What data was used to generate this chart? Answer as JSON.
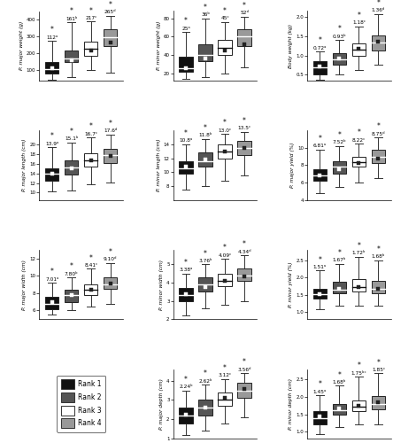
{
  "figsize": [
    4.44,
    5.0
  ],
  "colors": {
    "rank1": "#111111",
    "rank2": "#555555",
    "rank3": "#ffffff",
    "rank4": "#999999"
  },
  "subplots": [
    {
      "ylabel": "P. major weight (g)",
      "ylim": [
        40,
        450
      ],
      "yticks": [
        100,
        200,
        300,
        400
      ],
      "means": [
        112,
        161,
        217,
        265
      ],
      "mean_labels": [
        "112ᵃ",
        "161ᵇ",
        "217ᶜ",
        "265ᵈ"
      ],
      "sig_stars": [
        true,
        true,
        true,
        true
      ],
      "boxes": [
        {
          "q1": 80,
          "median": 105,
          "q3": 148,
          "whislo": 42,
          "whishi": 275
        },
        {
          "q1": 150,
          "median": 172,
          "q3": 215,
          "whislo": 62,
          "whishi": 385
        },
        {
          "q1": 188,
          "median": 228,
          "q3": 272,
          "whislo": 102,
          "whishi": 388
        },
        {
          "q1": 245,
          "median": 298,
          "q3": 342,
          "whislo": 88,
          "whishi": 422
        }
      ],
      "row": 0,
      "col": 0
    },
    {
      "ylabel": "P. minor weight (g)",
      "ylim": [
        12,
        88
      ],
      "yticks": [
        20,
        40,
        60,
        80
      ],
      "means": [
        25,
        36,
        45,
        52
      ],
      "mean_labels": [
        "25ᵃ",
        "36ᵇ",
        "45ᶜ",
        "52ᵈ"
      ],
      "sig_stars": [
        true,
        true,
        true,
        true
      ],
      "boxes": [
        {
          "q1": 22,
          "median": 25,
          "q3": 38,
          "whislo": 14,
          "whishi": 65
        },
        {
          "q1": 33,
          "median": 40,
          "q3": 52,
          "whislo": 16,
          "whishi": 80
        },
        {
          "q1": 40,
          "median": 48,
          "q3": 56,
          "whislo": 20,
          "whishi": 76
        },
        {
          "q1": 50,
          "median": 60,
          "q3": 68,
          "whislo": 26,
          "whishi": 82
        }
      ],
      "row": 0,
      "col": 1
    },
    {
      "ylabel": "Body weight (kg)",
      "ylim": [
        0.35,
        2.15
      ],
      "yticks": [
        0.5,
        1.0,
        1.5,
        2.0
      ],
      "means": [
        0.72,
        0.93,
        1.18,
        1.36
      ],
      "mean_labels": [
        "0.72ᵃ",
        "0.93ᵇ",
        "1.18ᶜ",
        "1.36ᵈ"
      ],
      "sig_stars": [
        true,
        true,
        true,
        true
      ],
      "boxes": [
        {
          "q1": 0.5,
          "median": 0.68,
          "q3": 0.85,
          "whislo": 0.38,
          "whishi": 1.1
        },
        {
          "q1": 0.75,
          "median": 0.9,
          "q3": 1.05,
          "whislo": 0.5,
          "whishi": 1.4
        },
        {
          "q1": 0.98,
          "median": 1.15,
          "q3": 1.32,
          "whislo": 0.62,
          "whishi": 1.75
        },
        {
          "q1": 1.12,
          "median": 1.33,
          "q3": 1.52,
          "whislo": 0.75,
          "whishi": 2.08
        }
      ],
      "row": 0,
      "col": 2
    },
    {
      "ylabel": "P. major length (cm)",
      "ylim": [
        8.5,
        23.0
      ],
      "yticks": [
        10,
        12,
        14,
        16,
        18,
        20
      ],
      "means": [
        13.9,
        15.1,
        16.7,
        17.6
      ],
      "mean_labels": [
        "13.9ᵃ",
        "15.1ᵇ",
        "16.7ᶜ",
        "17.6ᵈ"
      ],
      "sig_stars": [
        true,
        true,
        true,
        true
      ],
      "boxes": [
        {
          "q1": 12.5,
          "median": 14.0,
          "q3": 15.0,
          "whislo": 10.2,
          "whishi": 19.5
        },
        {
          "q1": 13.8,
          "median": 15.2,
          "q3": 16.8,
          "whislo": 10.5,
          "whishi": 20.5
        },
        {
          "q1": 15.5,
          "median": 16.8,
          "q3": 18.2,
          "whislo": 11.8,
          "whishi": 21.5
        },
        {
          "q1": 16.2,
          "median": 17.8,
          "q3": 19.2,
          "whislo": 12.2,
          "whishi": 22.2
        }
      ],
      "row": 1,
      "col": 0
    },
    {
      "ylabel": "P. minor length (cm)",
      "ylim": [
        6.0,
        16.0
      ],
      "yticks": [
        8,
        10,
        12,
        14
      ],
      "means": [
        10.8,
        11.8,
        13.0,
        13.5
      ],
      "mean_labels": [
        "10.8ᵃ",
        "11.8ᵇ",
        "13.0ᶜ",
        "13.5ᶜ"
      ],
      "sig_stars": [
        true,
        true,
        true,
        true
      ],
      "boxes": [
        {
          "q1": 9.8,
          "median": 10.5,
          "q3": 11.5,
          "whislo": 7.5,
          "whishi": 14.0
        },
        {
          "q1": 10.8,
          "median": 11.5,
          "q3": 12.8,
          "whislo": 8.0,
          "whishi": 14.8
        },
        {
          "q1": 12.0,
          "median": 13.0,
          "q3": 14.0,
          "whislo": 8.8,
          "whishi": 15.5
        },
        {
          "q1": 12.5,
          "median": 13.5,
          "q3": 14.5,
          "whislo": 9.5,
          "whishi": 15.8
        }
      ],
      "row": 1,
      "col": 1
    },
    {
      "ylabel": "P. major yield (%)",
      "ylim": [
        4.0,
        12.0
      ],
      "yticks": [
        4,
        6,
        8,
        10
      ],
      "means": [
        6.81,
        7.52,
        8.22,
        8.75
      ],
      "mean_labels": [
        "6.81ᵃ",
        "7.52ᵇ",
        "8.22ᶜ",
        "8.75ᵈ"
      ],
      "sig_stars": [
        true,
        true,
        true,
        true
      ],
      "boxes": [
        {
          "q1": 6.2,
          "median": 6.8,
          "q3": 7.5,
          "whislo": 4.8,
          "whishi": 9.8
        },
        {
          "q1": 7.0,
          "median": 7.8,
          "q3": 8.4,
          "whislo": 5.5,
          "whishi": 10.2
        },
        {
          "q1": 7.8,
          "median": 8.3,
          "q3": 9.0,
          "whislo": 6.0,
          "whishi": 10.5
        },
        {
          "q1": 8.2,
          "median": 9.0,
          "q3": 9.8,
          "whislo": 6.5,
          "whishi": 11.2
        }
      ],
      "row": 1,
      "col": 2
    },
    {
      "ylabel": "P. major width (cm)",
      "ylim": [
        5.0,
        13.0
      ],
      "yticks": [
        6,
        8,
        10,
        12
      ],
      "means": [
        7.01,
        7.8,
        8.41,
        9.1
      ],
      "mean_labels": [
        "7.01ᵃ",
        "7.80ᵇ",
        "8.41ᶜ",
        "9.10ᵈ"
      ],
      "sig_stars": [
        true,
        true,
        true,
        true
      ],
      "boxes": [
        {
          "q1": 6.2,
          "median": 6.8,
          "q3": 7.6,
          "whislo": 5.5,
          "whishi": 9.2
        },
        {
          "q1": 7.0,
          "median": 7.8,
          "q3": 8.4,
          "whislo": 6.0,
          "whishi": 9.8
        },
        {
          "q1": 7.8,
          "median": 8.4,
          "q3": 9.0,
          "whislo": 6.5,
          "whishi": 10.8
        },
        {
          "q1": 8.5,
          "median": 9.0,
          "q3": 9.8,
          "whislo": 6.8,
          "whishi": 11.5
        }
      ],
      "row": 2,
      "col": 0
    },
    {
      "ylabel": "P. minor width (cm)",
      "ylim": [
        2.0,
        5.8
      ],
      "yticks": [
        2,
        3,
        4,
        5
      ],
      "means": [
        3.38,
        3.76,
        4.09,
        4.34
      ],
      "mean_labels": [
        "3.38ᵃ",
        "3.76ᵇ",
        "4.09ᶜ",
        "4.34ᵈ"
      ],
      "sig_stars": [
        true,
        true,
        true,
        true
      ],
      "boxes": [
        {
          "q1": 3.0,
          "median": 3.3,
          "q3": 3.7,
          "whislo": 2.2,
          "whishi": 4.5
        },
        {
          "q1": 3.5,
          "median": 3.9,
          "q3": 4.3,
          "whislo": 2.6,
          "whishi": 5.0
        },
        {
          "q1": 3.8,
          "median": 4.1,
          "q3": 4.5,
          "whislo": 2.8,
          "whishi": 5.3
        },
        {
          "q1": 4.1,
          "median": 4.4,
          "q3": 4.8,
          "whislo": 3.0,
          "whishi": 5.5
        }
      ],
      "row": 2,
      "col": 1
    },
    {
      "ylabel": "P. minor yield (%)",
      "ylim": [
        0.8,
        2.8
      ],
      "yticks": [
        1.0,
        1.5,
        2.0,
        2.5
      ],
      "means": [
        1.51,
        1.67,
        1.72,
        1.68
      ],
      "mean_labels": [
        "1.51ᵃ",
        "1.67ᵇ",
        "1.72ᵇ",
        "1.68ᵇ"
      ],
      "sig_stars": [
        true,
        true,
        true,
        true
      ],
      "boxes": [
        {
          "q1": 1.4,
          "median": 1.52,
          "q3": 1.68,
          "whislo": 1.1,
          "whishi": 2.2
        },
        {
          "q1": 1.55,
          "median": 1.65,
          "q3": 1.88,
          "whislo": 1.2,
          "whishi": 2.4
        },
        {
          "q1": 1.6,
          "median": 1.72,
          "q3": 1.95,
          "whislo": 1.2,
          "whishi": 2.6
        },
        {
          "q1": 1.55,
          "median": 1.68,
          "q3": 1.9,
          "whislo": 1.2,
          "whishi": 2.5
        }
      ],
      "row": 2,
      "col": 2
    },
    {
      "ylabel": "P. major depth (cm)",
      "ylim": [
        1.0,
        4.6
      ],
      "yticks": [
        1,
        2,
        3,
        4
      ],
      "means": [
        2.24,
        2.62,
        3.12,
        3.56
      ],
      "mean_labels": [
        "2.24ᵇ",
        "2.62ᵇ",
        "3.12ᶜ",
        "3.56ᵈ"
      ],
      "sig_stars": [
        true,
        true,
        true,
        true
      ],
      "boxes": [
        {
          "q1": 1.8,
          "median": 2.2,
          "q3": 2.6,
          "whislo": 1.2,
          "whishi": 3.5
        },
        {
          "q1": 2.2,
          "median": 2.6,
          "q3": 3.0,
          "whislo": 1.4,
          "whishi": 3.8
        },
        {
          "q1": 2.7,
          "median": 3.0,
          "q3": 3.4,
          "whislo": 1.8,
          "whishi": 4.1
        },
        {
          "q1": 3.1,
          "median": 3.5,
          "q3": 3.9,
          "whislo": 2.1,
          "whishi": 4.4
        }
      ],
      "row": 3,
      "col": 1
    },
    {
      "ylabel": "P. minor depth (cm)",
      "ylim": [
        0.8,
        2.8
      ],
      "yticks": [
        1.0,
        1.5,
        2.0,
        2.5
      ],
      "means": [
        1.45,
        1.68,
        1.75,
        1.85
      ],
      "mean_labels": [
        "1.45ᵃ",
        "1.68ᵇ",
        "1.75ᵇᶜ",
        "1.85ᶜ"
      ],
      "sig_stars": [
        true,
        true,
        true,
        true
      ],
      "boxes": [
        {
          "q1": 1.2,
          "median": 1.38,
          "q3": 1.6,
          "whislo": 0.92,
          "whishi": 2.05
        },
        {
          "q1": 1.48,
          "median": 1.62,
          "q3": 1.8,
          "whislo": 1.12,
          "whishi": 2.32
        },
        {
          "q1": 1.58,
          "median": 1.72,
          "q3": 1.9,
          "whislo": 1.22,
          "whishi": 2.58
        },
        {
          "q1": 1.65,
          "median": 1.8,
          "q3": 2.02,
          "whislo": 1.22,
          "whishi": 2.68
        }
      ],
      "row": 3,
      "col": 2
    }
  ]
}
